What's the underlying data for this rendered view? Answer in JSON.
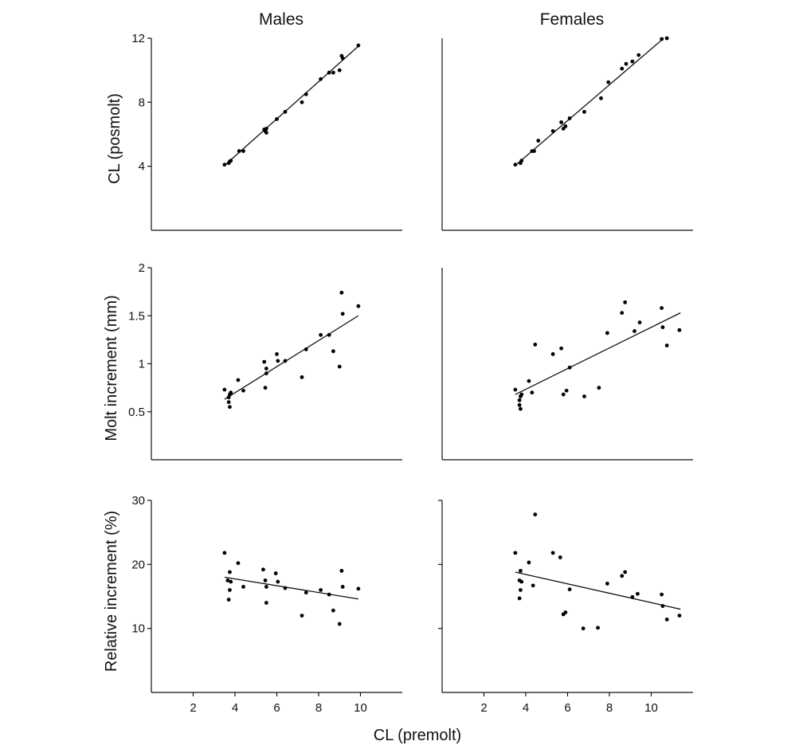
{
  "figure": {
    "column_titles": [
      "Males",
      "Females"
    ],
    "row_ylabels": [
      "CL (posmolt)",
      "Molt increment (mm)",
      "Relative increment (%)"
    ],
    "xlabel": "CL (premolt)"
  },
  "chart_data": [
    {
      "type": "scatter",
      "panel": "males-postmolt",
      "title": "Males",
      "xlabel": "",
      "ylabel": "CL (posmolt)",
      "xlim": [
        0,
        12
      ],
      "ylim": [
        0,
        12
      ],
      "xticks": [],
      "yticks": [
        4,
        8,
        12
      ],
      "grid": false,
      "x": [
        3.5,
        3.7,
        3.75,
        3.8,
        4.2,
        4.4,
        5.4,
        5.45,
        5.5,
        5.5,
        6.0,
        6.4,
        7.2,
        7.4,
        8.1,
        8.5,
        8.7,
        9.0,
        9.1,
        9.15,
        9.9
      ],
      "y": [
        4.1,
        4.2,
        4.3,
        4.35,
        4.95,
        4.95,
        6.3,
        6.2,
        6.35,
        6.1,
        6.95,
        7.4,
        8.0,
        8.5,
        9.45,
        9.85,
        9.85,
        10.0,
        10.9,
        10.75,
        11.55
      ],
      "fit": {
        "x": [
          3.5,
          9.9
        ],
        "y": [
          4.05,
          11.5
        ]
      }
    },
    {
      "type": "scatter",
      "panel": "females-postmolt",
      "title": "Females",
      "xlabel": "",
      "ylabel": "",
      "xlim": [
        0,
        12
      ],
      "ylim": [
        0,
        12
      ],
      "xticks": [],
      "yticks": [],
      "grid": false,
      "x": [
        3.5,
        3.75,
        3.8,
        4.3,
        4.4,
        4.6,
        5.3,
        5.7,
        5.8,
        5.9,
        6.1,
        6.8,
        7.6,
        7.95,
        8.6,
        8.8,
        9.1,
        9.4,
        10.5,
        10.75
      ],
      "y": [
        4.1,
        4.2,
        4.35,
        4.95,
        4.95,
        5.6,
        6.2,
        6.75,
        6.35,
        6.5,
        7.0,
        7.4,
        8.25,
        9.25,
        10.1,
        10.4,
        10.55,
        10.95,
        11.95,
        12.0
      ],
      "fit": {
        "x": [
          3.5,
          10.6
        ],
        "y": [
          4.05,
          12.0
        ]
      }
    },
    {
      "type": "scatter",
      "panel": "males-molt-increment",
      "title": "",
      "xlabel": "",
      "ylabel": "Molt increment (mm)",
      "xlim": [
        0,
        12
      ],
      "ylim": [
        0,
        2
      ],
      "xticks": [],
      "yticks": [
        0.5,
        1,
        1.5,
        2
      ],
      "grid": false,
      "x": [
        3.5,
        3.7,
        3.7,
        3.75,
        3.75,
        3.8,
        4.15,
        4.4,
        5.4,
        5.45,
        5.5,
        5.5,
        6.0,
        6.05,
        6.4,
        7.2,
        7.4,
        8.1,
        8.5,
        8.7,
        9.0,
        9.1,
        9.15,
        9.9
      ],
      "y": [
        0.73,
        0.65,
        0.6,
        0.55,
        0.68,
        0.7,
        0.83,
        0.72,
        1.02,
        0.75,
        0.95,
        0.9,
        1.1,
        1.03,
        1.03,
        0.86,
        1.15,
        1.3,
        1.3,
        1.13,
        0.97,
        1.74,
        1.52,
        1.6
      ],
      "fit": {
        "x": [
          3.5,
          9.9
        ],
        "y": [
          0.63,
          1.5
        ]
      }
    },
    {
      "type": "scatter",
      "panel": "females-molt-increment",
      "title": "",
      "xlabel": "",
      "ylabel": "",
      "xlim": [
        0,
        12
      ],
      "ylim": [
        0,
        2
      ],
      "xticks": [],
      "yticks": [],
      "grid": false,
      "x": [
        3.5,
        3.7,
        3.7,
        3.75,
        3.75,
        3.8,
        4.15,
        4.3,
        4.45,
        5.3,
        5.7,
        5.8,
        5.95,
        6.1,
        6.8,
        7.5,
        7.9,
        8.6,
        8.75,
        9.2,
        9.45,
        10.5,
        10.55,
        10.75,
        11.35
      ],
      "y": [
        0.73,
        0.62,
        0.57,
        0.53,
        0.66,
        0.68,
        0.82,
        0.7,
        1.2,
        1.1,
        1.16,
        0.68,
        0.72,
        0.96,
        0.66,
        0.75,
        1.32,
        1.53,
        1.64,
        1.34,
        1.43,
        1.58,
        1.38,
        1.19,
        1.35
      ],
      "fit": {
        "x": [
          3.5,
          11.4
        ],
        "y": [
          0.68,
          1.53
        ]
      }
    },
    {
      "type": "scatter",
      "panel": "males-relative-increment",
      "title": "",
      "xlabel": "",
      "ylabel": "Relative increment (%)",
      "xlim": [
        0,
        12
      ],
      "ylim": [
        0,
        30
      ],
      "xticks": [
        2,
        4,
        6,
        8,
        10
      ],
      "yticks": [
        10,
        20,
        30
      ],
      "grid": false,
      "x": [
        3.5,
        3.65,
        3.7,
        3.75,
        3.75,
        3.8,
        4.15,
        4.4,
        5.35,
        5.45,
        5.5,
        5.5,
        5.95,
        6.05,
        6.4,
        7.2,
        7.4,
        8.1,
        8.5,
        8.7,
        9.0,
        9.1,
        9.15,
        9.9
      ],
      "y": [
        21.8,
        17.5,
        14.5,
        18.8,
        16.0,
        17.3,
        20.2,
        16.5,
        19.2,
        17.5,
        14.0,
        16.5,
        18.6,
        17.3,
        16.3,
        12.0,
        15.6,
        16.0,
        15.3,
        12.8,
        10.7,
        19.0,
        16.5,
        16.2
      ],
      "fit": {
        "x": [
          3.5,
          9.9
        ],
        "y": [
          18.0,
          14.6
        ]
      }
    },
    {
      "type": "scatter",
      "panel": "females-relative-increment",
      "title": "",
      "xlabel": "",
      "ylabel": "",
      "xlim": [
        0,
        12
      ],
      "ylim": [
        0,
        30
      ],
      "xticks": [
        2,
        4,
        6,
        8,
        10
      ],
      "yticks": [
        10,
        20,
        30
      ],
      "grid": false,
      "x": [
        3.5,
        3.7,
        3.7,
        3.75,
        3.75,
        3.8,
        4.15,
        4.35,
        4.45,
        5.3,
        5.65,
        5.8,
        5.9,
        6.1,
        6.75,
        7.45,
        7.9,
        8.6,
        8.75,
        9.1,
        9.35,
        10.5,
        10.55,
        10.75,
        11.35
      ],
      "y": [
        21.8,
        17.5,
        14.7,
        19.0,
        16.0,
        17.3,
        20.3,
        16.7,
        27.8,
        21.8,
        21.1,
        12.2,
        12.5,
        16.1,
        10.0,
        10.1,
        17.0,
        18.2,
        18.8,
        14.9,
        15.4,
        15.3,
        13.5,
        11.4,
        12.0
      ],
      "fit": {
        "x": [
          3.5,
          11.4
        ],
        "y": [
          18.8,
          13.0
        ]
      }
    }
  ]
}
